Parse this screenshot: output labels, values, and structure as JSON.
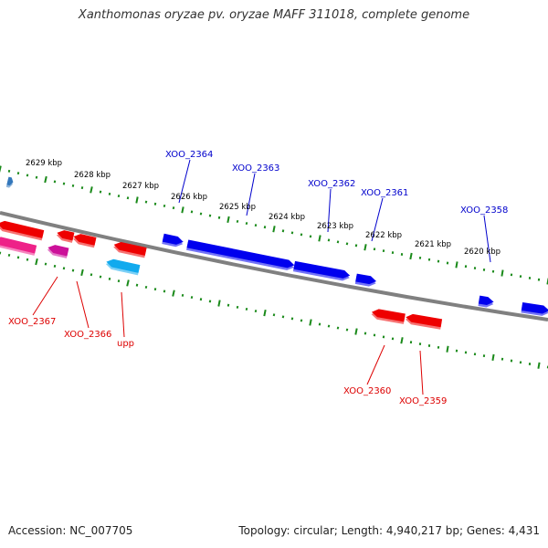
{
  "title": "Xanthomonas oryzae pv. oryzae MAFF 311018, complete genome",
  "footer": {
    "accession": "Accession: NC_007705",
    "stats": "Topology: circular; Length: 4,940,217 bp; Genes: 4,431"
  },
  "colors": {
    "backbone": "#888888",
    "ticks": "#1a8a1a",
    "forward_label": "#0000cc",
    "reverse_label": "#dd0000",
    "scale_label": "#000000"
  },
  "scale_labels": [
    "2629 kbp",
    "2628 kbp",
    "2627 kbp",
    "2626 kbp",
    "2625 kbp",
    "2624 kbp",
    "2623 kbp",
    "2622 kbp",
    "2621 kbp",
    "2620 kbp"
  ],
  "gene_labels": [
    {
      "name": "XOO_2364",
      "strand": "forward"
    },
    {
      "name": "XOO_2363",
      "strand": "forward"
    },
    {
      "name": "XOO_2362",
      "strand": "forward"
    },
    {
      "name": "XOO_2361",
      "strand": "forward"
    },
    {
      "name": "XOO_2358",
      "strand": "forward"
    },
    {
      "name": "XOO_2367",
      "strand": "reverse"
    },
    {
      "name": "XOO_2366",
      "strand": "reverse"
    },
    {
      "name": "upp",
      "strand": "reverse"
    },
    {
      "name": "XOO_2360",
      "strand": "reverse"
    },
    {
      "name": "XOO_2359",
      "strand": "reverse"
    }
  ],
  "feature_colors": {
    "forward_gene": "#0000ee",
    "reverse_gene": "#ee0000",
    "pink_gene": "#ee2288",
    "magenta_gene": "#cc1199",
    "cyan_gene": "#11aaee",
    "steel_gene": "#3377bb"
  }
}
